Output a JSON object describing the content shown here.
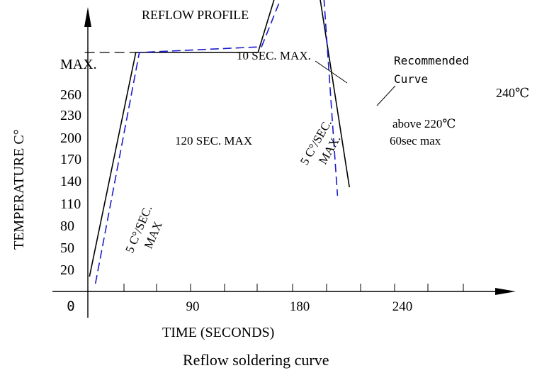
{
  "chart_data": {
    "type": "line",
    "title": "REFLOW PROFILE",
    "caption": "Reflow soldering curve",
    "xlabel": "TIME (SECONDS)",
    "ylabel": "TEMPERATURE C°",
    "x_ticks": [
      "0",
      "90",
      "180",
      "240"
    ],
    "y_ticks": [
      "20",
      "50",
      "80",
      "110",
      "140",
      "170",
      "200",
      "230",
      "260"
    ],
    "y_max_label": "MAX.",
    "annotations": {
      "peak_time": "10 SEC. MAX.",
      "soak": "120 SEC. MAX",
      "ramp_up": "5 C°/SEC.",
      "ramp_up_max": "MAX",
      "ramp_mid": "5 C°/SEC.",
      "ramp_mid_max": "MAX.",
      "recommended_line1": "Recommended",
      "recommended_line2": "Curve",
      "level_240": "240℃",
      "above_220_line1": "above 220℃",
      "above_220_line2": "60sec max"
    },
    "colors": {
      "limit_curve": "#000000",
      "recommended_curve": "#1a1acc",
      "above_220_line": "#e03030"
    },
    "series": [
      {
        "style": "solid",
        "x": [
          2,
          41,
          144,
          176,
          187,
          221
        ],
        "y": [
          16,
          174,
          174,
          262,
          262,
          79
        ]
      },
      {
        "style": "dashed",
        "x": [
          7,
          44,
          147,
          178,
          197,
          211
        ],
        "y": [
          11,
          174,
          178,
          243,
          243,
          73
        ]
      }
    ],
    "reference_lines": [
      {
        "style": "dashed",
        "value": 262,
        "x_range": [
          -2,
          176
        ]
      },
      {
        "style": "solid",
        "value": 253,
        "x_range": [
          -2,
          241
        ]
      },
      {
        "style": "dashed",
        "value": 174,
        "x_range": [
          -2,
          41
        ]
      },
      {
        "style": "dashed-red",
        "value": 223,
        "x_range": [
          166,
          202
        ]
      }
    ]
  }
}
